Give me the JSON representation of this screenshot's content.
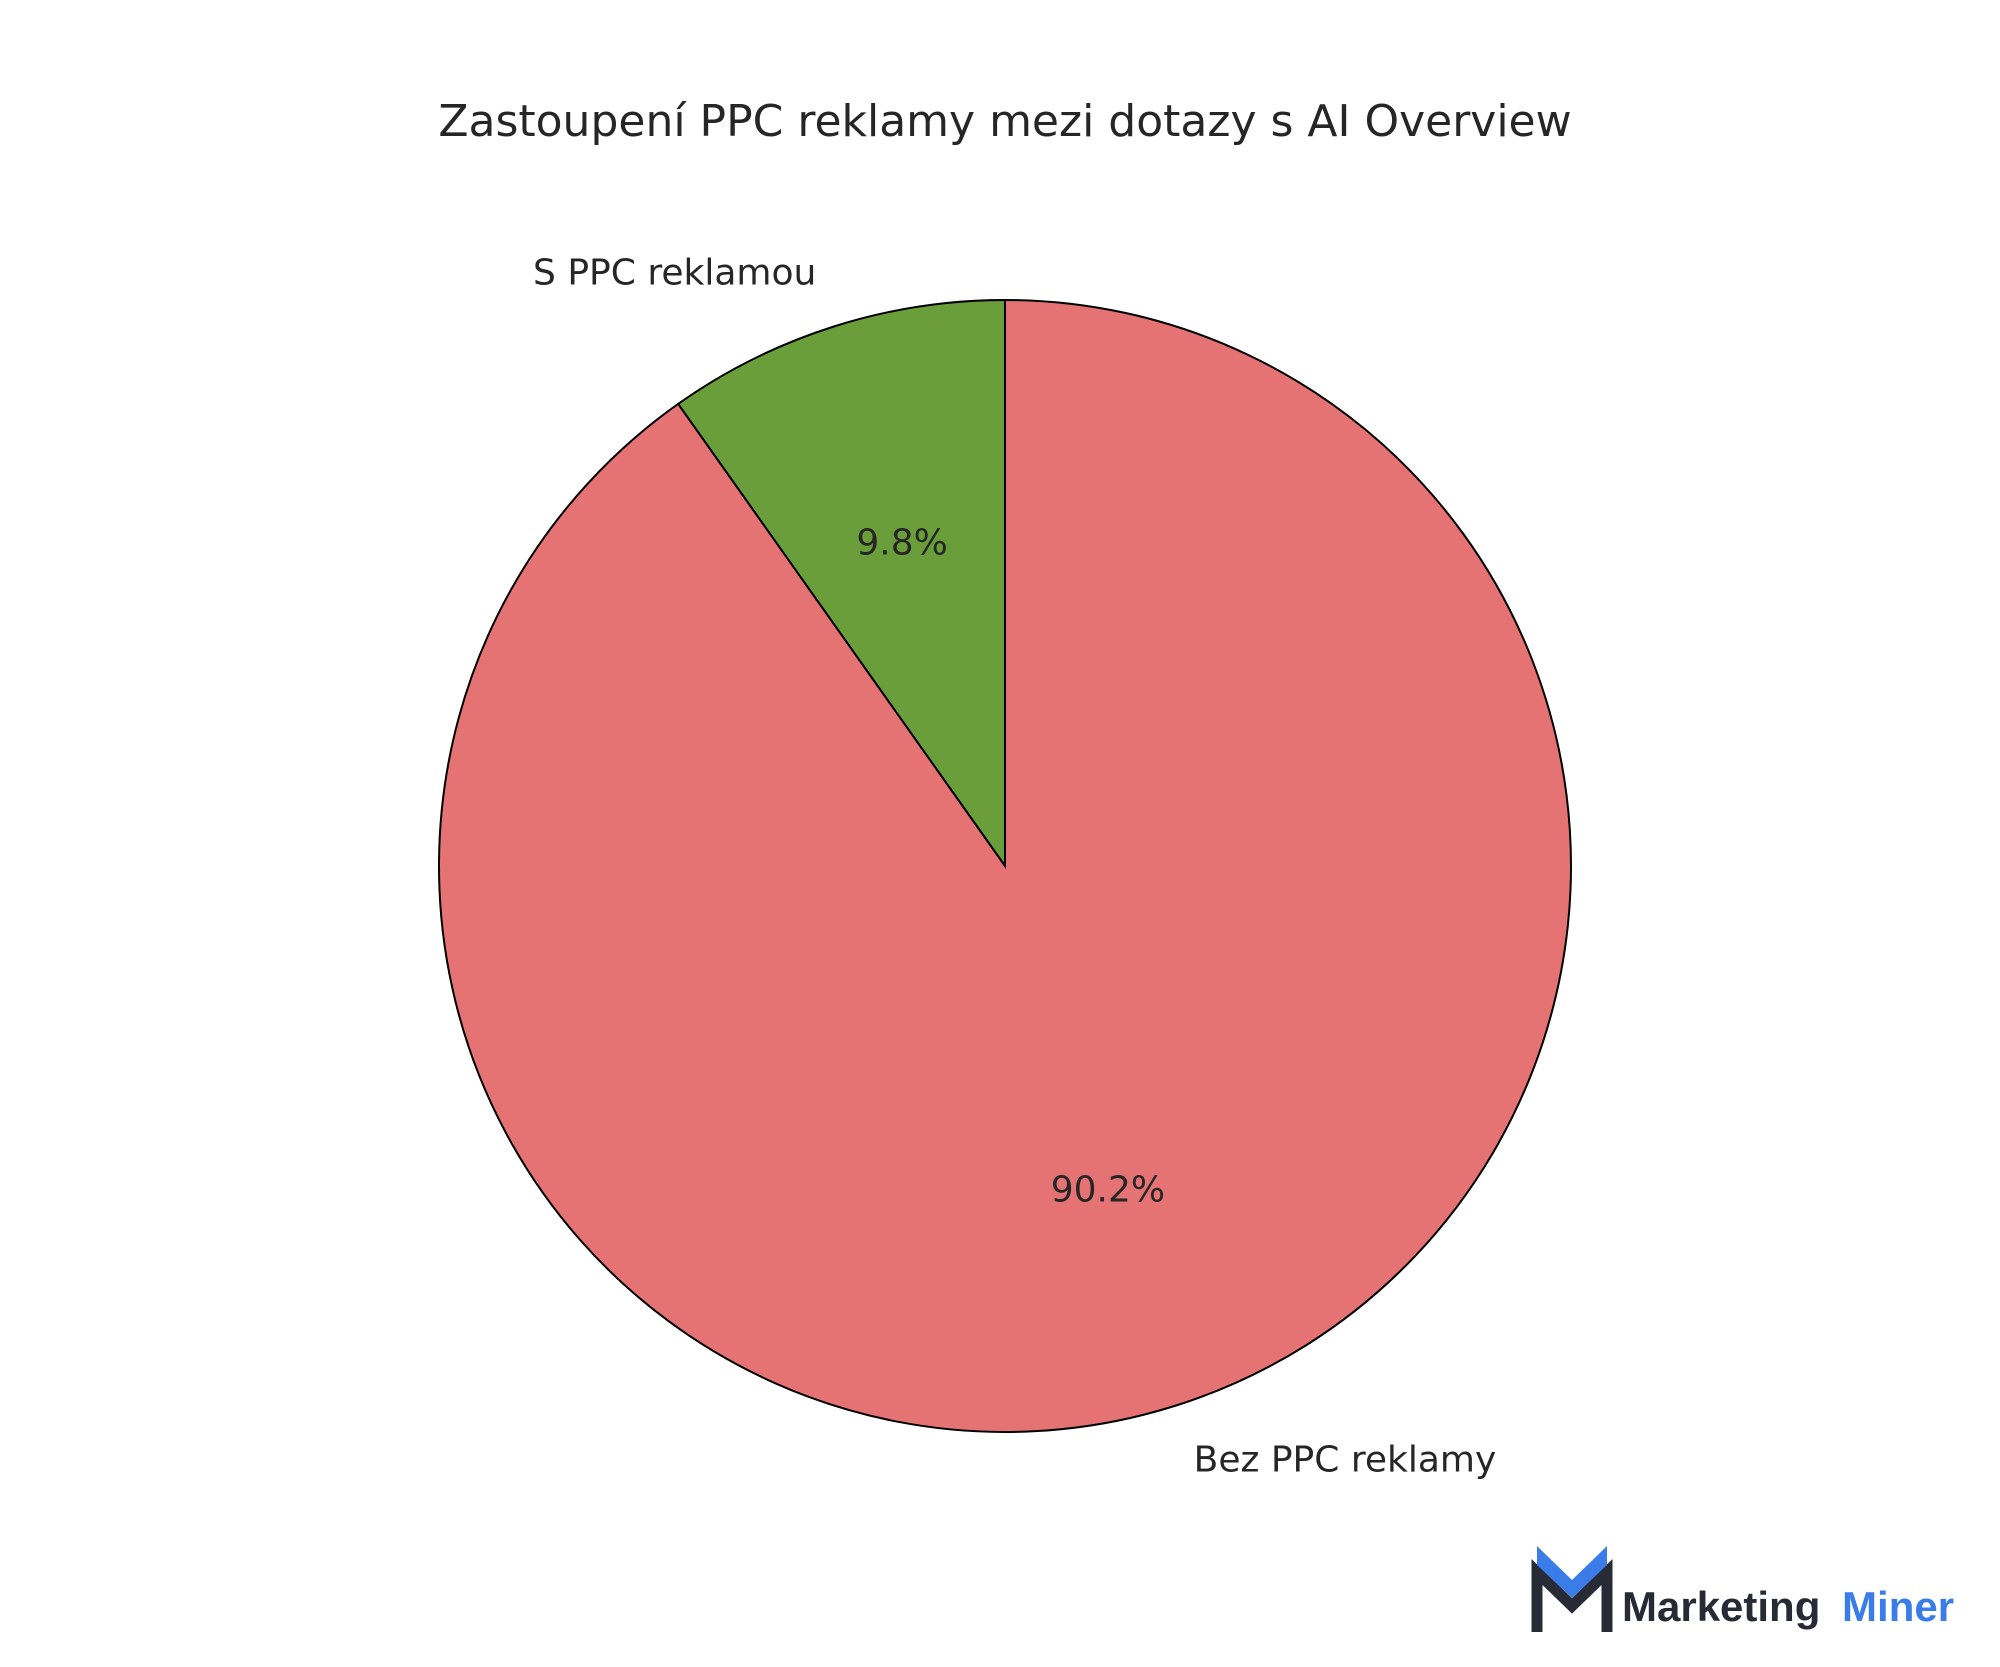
{
  "chart_data": {
    "type": "pie",
    "title": "Zastoupení PPC reklamy mezi dotazy s AI Overview",
    "start_angle_deg": 90,
    "direction": "counterclockwise",
    "slices": [
      {
        "label": "S PPC reklamou",
        "value": 9.8,
        "pct_label": "9.8%",
        "color": "#6a9e3a"
      },
      {
        "label": "Bez PPC reklamy",
        "value": 90.2,
        "pct_label": "90.2%",
        "color": "#e57373"
      }
    ],
    "edge_color": "#000000"
  },
  "branding": {
    "logo_word_1": "Marketing",
    "logo_word_2": "Miner",
    "logo_color_1": "#262b36",
    "logo_color_2": "#3b7de8"
  }
}
